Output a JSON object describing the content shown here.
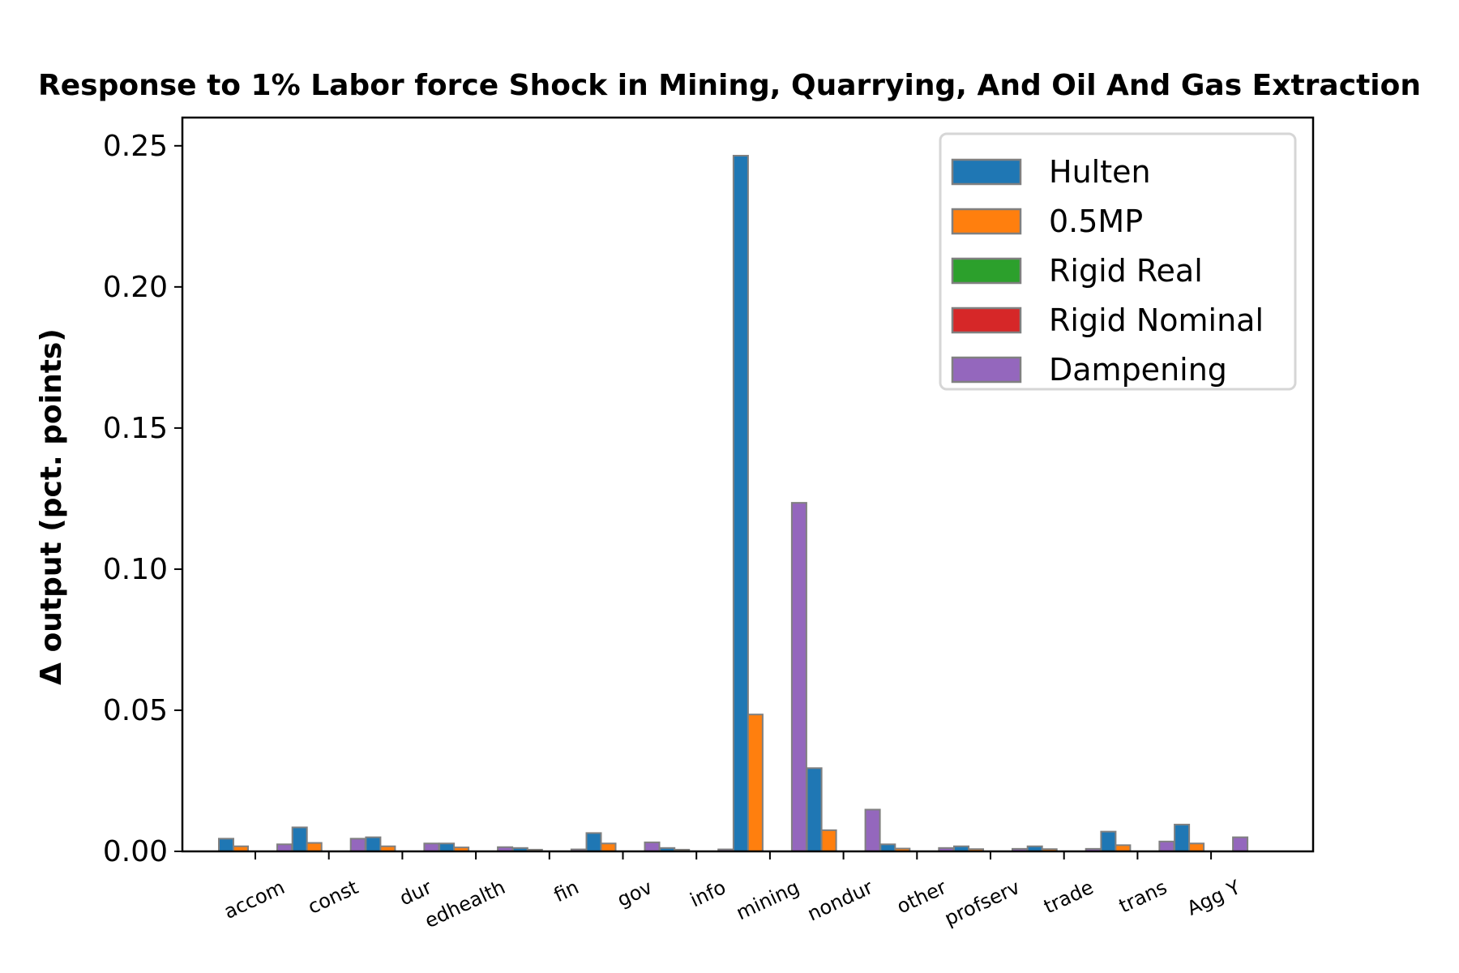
{
  "chart_data": {
    "type": "bar",
    "title": "Response to 1% Labor force Shock in Mining, Quarrying, And Oil And Gas Extraction",
    "xlabel": "",
    "ylabel": "Δ output (pct. points)",
    "ylim": [
      0,
      0.26
    ],
    "yticks": [
      "0.00",
      "0.05",
      "0.10",
      "0.15",
      "0.20",
      "0.25"
    ],
    "grid": false,
    "legend_position": "top-right",
    "categories": [
      "accom",
      "const",
      "dur",
      "edhealth",
      "fin",
      "gov",
      "info",
      "mining",
      "nondur",
      "other",
      "profserv",
      "trade",
      "trans",
      "Agg Y"
    ],
    "series": [
      {
        "name": "Hulten",
        "color": "#1f77b4",
        "values": [
          0.0045,
          0.0085,
          0.005,
          0.0028,
          0.0012,
          0.0065,
          0.0012,
          0.2465,
          0.0295,
          0.0025,
          0.0018,
          0.0018,
          0.007,
          0.0095
        ]
      },
      {
        "name": "0.5MP",
        "color": "#ff7f0e",
        "values": [
          0.0018,
          0.003,
          0.0018,
          0.0014,
          0.0006,
          0.0028,
          0.0006,
          0.0485,
          0.0075,
          0.001,
          0.0008,
          0.0008,
          0.0022,
          0.0028
        ]
      },
      {
        "name": "Rigid Real",
        "color": "#2ca02c",
        "values": [
          0.0,
          0.0,
          0.0,
          0.0,
          0.0,
          0.0,
          0.0,
          0.0,
          0.0,
          0.0,
          0.0,
          0.0,
          0.0,
          0.0
        ]
      },
      {
        "name": "Rigid Nominal",
        "color": "#d62728",
        "values": [
          0.0,
          0.0,
          0.0,
          0.0,
          0.0,
          0.0,
          0.0,
          0.0,
          0.0,
          0.0,
          0.0,
          0.0,
          0.0,
          0.0
        ]
      },
      {
        "name": "Dampening",
        "color": "#9467bd",
        "values": [
          0.0025,
          0.0045,
          0.0028,
          0.0015,
          0.0007,
          0.0032,
          0.0007,
          0.1235,
          0.0148,
          0.0012,
          0.0009,
          0.0009,
          0.0035,
          0.005
        ]
      }
    ]
  }
}
